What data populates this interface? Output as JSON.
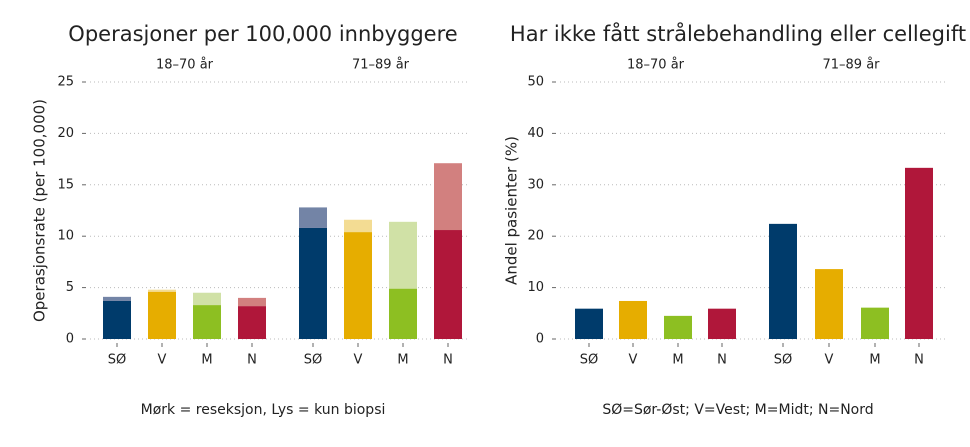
{
  "chart_data": [
    {
      "type": "stacked_bar",
      "title": "Operasjoner per 100,000 innbyggere",
      "ylabel": "Operasjonsrate (per 100,000)",
      "note": "Mørk = reseksjon, Lys = kun biopsi",
      "ylim": [
        0,
        25
      ],
      "yticks": [
        0,
        5,
        10,
        15,
        20,
        25
      ],
      "grid": true,
      "colors": [
        "#003b6b",
        "#e6ad00",
        "#8dbf22",
        "#b0173a"
      ],
      "light_colors": [
        "#7384a6",
        "#f3dc93",
        "#d0e1a6",
        "#d2807f"
      ],
      "facets": [
        {
          "label": "18–70 år",
          "categories": [
            "SØ",
            "V",
            "M",
            "N"
          ],
          "dark": [
            3.7,
            4.6,
            3.3,
            3.2
          ],
          "light": [
            0.4,
            0.2,
            1.2,
            0.8
          ]
        },
        {
          "label": "71–89 år",
          "categories": [
            "SØ",
            "V",
            "M",
            "N"
          ],
          "dark": [
            10.8,
            10.4,
            4.9,
            10.6
          ],
          "light": [
            2.0,
            1.2,
            6.5,
            6.5
          ]
        }
      ]
    },
    {
      "type": "bar",
      "title": "Har ikke fått strålebehandling eller cellegift",
      "ylabel": "Andel pasienter (%)",
      "note": "SØ=Sør-Øst; V=Vest; M=Midt; N=Nord",
      "ylim": [
        0,
        50
      ],
      "yticks": [
        0,
        10,
        20,
        30,
        40,
        50
      ],
      "grid": true,
      "colors": [
        "#003b6b",
        "#e6ad00",
        "#8dbf22",
        "#b0173a"
      ],
      "facets": [
        {
          "label": "18–70 år",
          "categories": [
            "SØ",
            "V",
            "M",
            "N"
          ],
          "values": [
            5.9,
            7.4,
            4.5,
            5.9
          ]
        },
        {
          "label": "71–89 år",
          "categories": [
            "SØ",
            "V",
            "M",
            "N"
          ],
          "values": [
            22.4,
            13.6,
            6.1,
            33.3
          ]
        }
      ]
    }
  ]
}
